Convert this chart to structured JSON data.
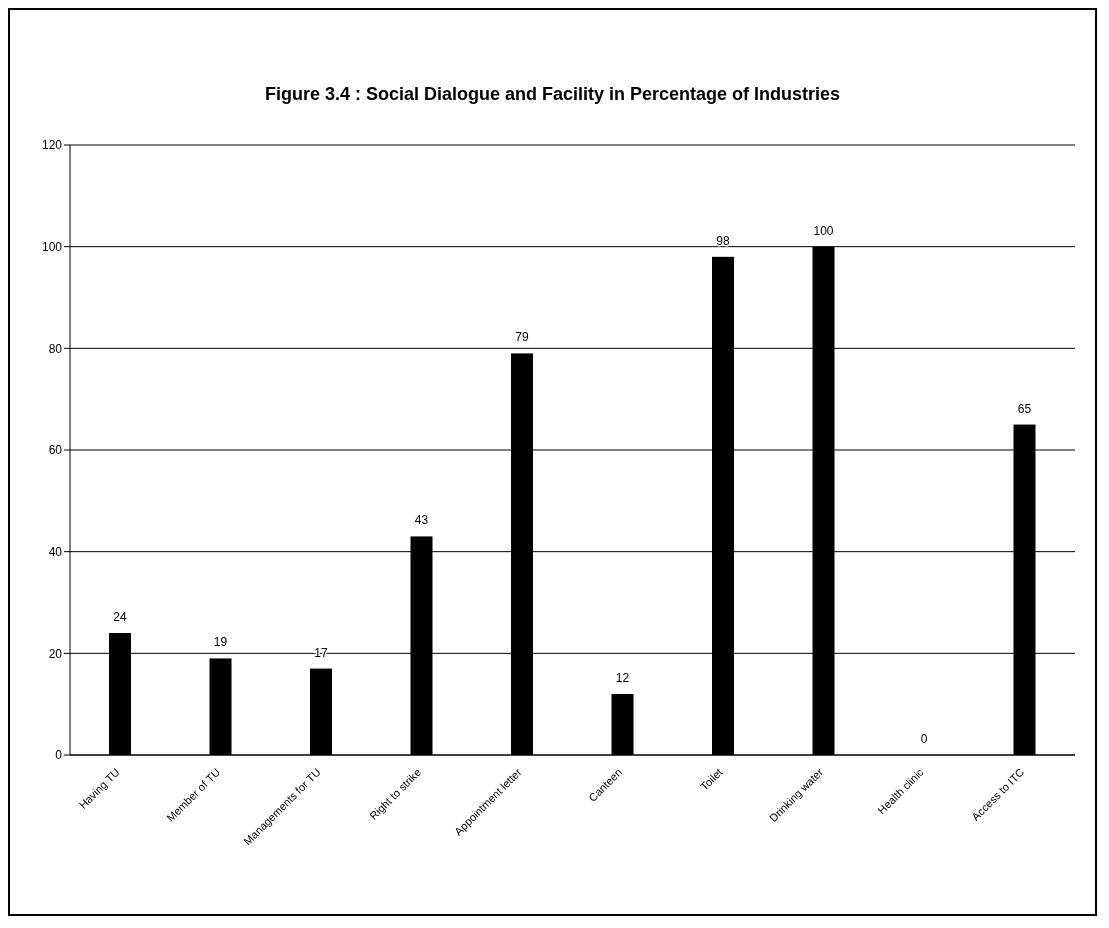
{
  "chart_data": {
    "type": "bar",
    "title": "Figure 3.4 : Social Dialogue and Facility in Percentage of Industries",
    "categories": [
      "Having TU",
      "Member of TU",
      "Managements for TU",
      "Right to strike",
      "Appointment letter",
      "Canteen",
      "Toilet",
      "Drinking water",
      "Health clinic",
      "Access to ITC"
    ],
    "values": [
      24,
      19,
      17,
      43,
      79,
      12,
      98,
      100,
      0,
      65
    ],
    "color": "#000000",
    "ylim": [
      0,
      120
    ],
    "yticks": [
      0,
      20,
      40,
      60,
      80,
      100,
      120
    ],
    "grid": "y",
    "data_labels": true
  }
}
